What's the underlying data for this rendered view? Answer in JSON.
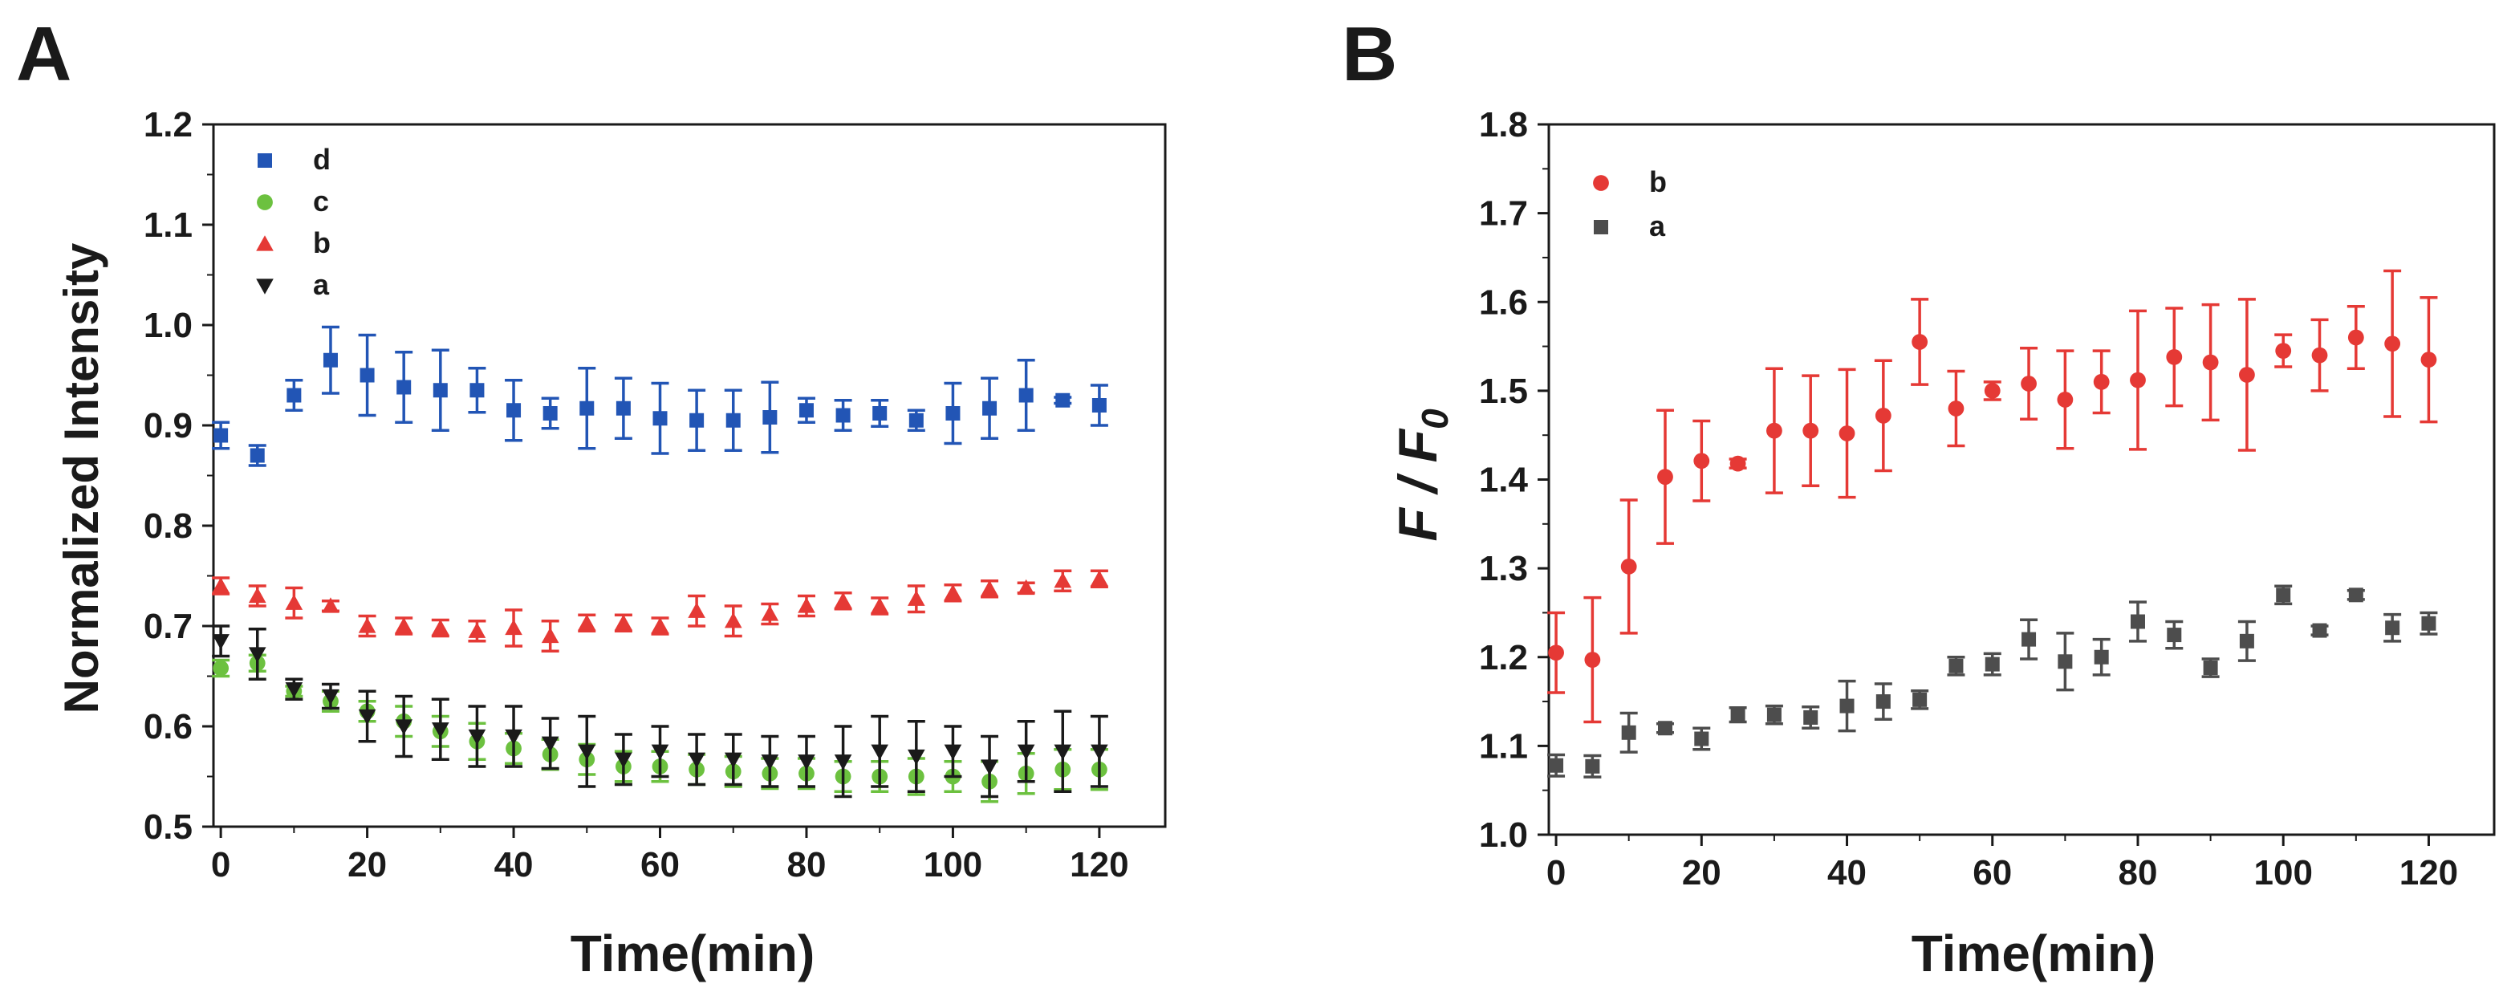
{
  "colors": {
    "d": "#2255B5",
    "c": "#6CC13F",
    "b": "#E53935",
    "a": "#1A1A1A",
    "a_b": "#4D4D4D",
    "axis": "#1A1A1A"
  },
  "chart_data": [
    {
      "panel_label": "A",
      "type": "scatter",
      "xlabel": "Time(min)",
      "ylabel": "Normalized Intensity",
      "xlim": [
        -1,
        129
      ],
      "ylim": [
        0.5,
        1.2
      ],
      "xticks": [
        0,
        20,
        40,
        60,
        80,
        100,
        120
      ],
      "xtick_labels": [
        "0",
        "20",
        "40",
        "60",
        "80",
        "100",
        "120"
      ],
      "yticks": [
        0.5,
        0.6,
        0.7,
        0.8,
        0.9,
        1.0,
        1.1,
        1.2
      ],
      "ytick_labels": [
        "0.5",
        "0.6",
        "0.7",
        "0.8",
        "0.9",
        "1.0",
        "1.1",
        "1.2"
      ],
      "legend_position": "top-left",
      "x": [
        0,
        5,
        10,
        15,
        20,
        25,
        30,
        35,
        40,
        45,
        50,
        55,
        60,
        65,
        70,
        75,
        80,
        85,
        90,
        95,
        100,
        105,
        110,
        115,
        120
      ],
      "series": [
        {
          "name": "d",
          "marker": "square",
          "color": "#2255B5",
          "values": [
            0.89,
            0.87,
            0.93,
            0.965,
            0.95,
            0.938,
            0.935,
            0.935,
            0.915,
            0.912,
            0.917,
            0.917,
            0.907,
            0.905,
            0.905,
            0.908,
            0.915,
            0.91,
            0.912,
            0.905,
            0.912,
            0.917,
            0.93,
            0.925,
            0.92
          ],
          "errors": [
            0.013,
            0.01,
            0.015,
            0.033,
            0.04,
            0.035,
            0.04,
            0.022,
            0.03,
            0.015,
            0.04,
            0.03,
            0.035,
            0.03,
            0.03,
            0.035,
            0.012,
            0.015,
            0.013,
            0.01,
            0.03,
            0.03,
            0.035,
            0.003,
            0.02
          ]
        },
        {
          "name": "c",
          "marker": "circle",
          "color": "#6CC13F",
          "values": [
            0.658,
            0.663,
            0.635,
            0.625,
            0.615,
            0.605,
            0.595,
            0.585,
            0.578,
            0.572,
            0.567,
            0.56,
            0.56,
            0.557,
            0.555,
            0.553,
            0.553,
            0.55,
            0.55,
            0.55,
            0.55,
            0.545,
            0.553,
            0.557,
            0.557
          ],
          "errors": [
            0.008,
            0.008,
            0.005,
            0.01,
            0.01,
            0.015,
            0.015,
            0.018,
            0.015,
            0.015,
            0.015,
            0.015,
            0.015,
            0.015,
            0.015,
            0.015,
            0.015,
            0.015,
            0.015,
            0.018,
            0.015,
            0.02,
            0.02,
            0.02,
            0.02
          ]
        },
        {
          "name": "b",
          "marker": "triangle-up",
          "color": "#E53935",
          "values": [
            0.74,
            0.73,
            0.723,
            0.72,
            0.7,
            0.7,
            0.698,
            0.695,
            0.698,
            0.69,
            0.703,
            0.703,
            0.7,
            0.715,
            0.705,
            0.712,
            0.72,
            0.725,
            0.72,
            0.727,
            0.733,
            0.737,
            0.738,
            0.745,
            0.747
          ],
          "errors": [
            0.008,
            0.01,
            0.015,
            0.005,
            0.01,
            0.008,
            0.008,
            0.01,
            0.018,
            0.015,
            0.008,
            0.008,
            0.008,
            0.015,
            0.015,
            0.01,
            0.01,
            0.008,
            0.008,
            0.013,
            0.008,
            0.008,
            0.005,
            0.01,
            0.008
          ]
        },
        {
          "name": "a",
          "marker": "triangle-down",
          "color": "#1A1A1A",
          "values": [
            0.685,
            0.672,
            0.637,
            0.63,
            0.61,
            0.6,
            0.597,
            0.59,
            0.59,
            0.583,
            0.575,
            0.567,
            0.575,
            0.567,
            0.567,
            0.565,
            0.565,
            0.565,
            0.575,
            0.57,
            0.575,
            0.56,
            0.575,
            0.575,
            0.575
          ],
          "errors": [
            0.015,
            0.025,
            0.01,
            0.012,
            0.025,
            0.03,
            0.03,
            0.03,
            0.03,
            0.025,
            0.035,
            0.025,
            0.025,
            0.025,
            0.025,
            0.025,
            0.025,
            0.035,
            0.035,
            0.035,
            0.025,
            0.03,
            0.03,
            0.04,
            0.035
          ]
        }
      ]
    },
    {
      "panel_label": "B",
      "type": "scatter",
      "xlabel": "Time(min)",
      "ylabel_main": "F / F",
      "ylabel_sub": "0",
      "xlim": [
        -1,
        129
      ],
      "ylim": [
        1.0,
        1.8
      ],
      "xticks": [
        0,
        20,
        40,
        60,
        80,
        100,
        120
      ],
      "xtick_labels": [
        "0",
        "20",
        "40",
        "60",
        "80",
        "100",
        "120"
      ],
      "yticks": [
        1.0,
        1.1,
        1.2,
        1.3,
        1.4,
        1.5,
        1.6,
        1.7,
        1.8
      ],
      "ytick_labels": [
        "1.0",
        "1.1",
        "1.2",
        "1.3",
        "1.4",
        "1.5",
        "1.6",
        "1.7",
        "1.8"
      ],
      "legend_position": "top-left",
      "x": [
        0,
        5,
        10,
        15,
        20,
        25,
        30,
        35,
        40,
        45,
        50,
        55,
        60,
        65,
        70,
        75,
        80,
        85,
        90,
        95,
        100,
        105,
        110,
        115,
        120
      ],
      "series": [
        {
          "name": "b",
          "marker": "circle",
          "color": "#E53935",
          "values": [
            1.205,
            1.197,
            1.302,
            1.403,
            1.421,
            1.418,
            1.455,
            1.455,
            1.452,
            1.472,
            1.555,
            1.48,
            1.5,
            1.508,
            1.49,
            1.51,
            1.512,
            1.538,
            1.532,
            1.518,
            1.545,
            1.54,
            1.56,
            1.553,
            1.535
          ],
          "errors": [
            0.045,
            0.07,
            0.075,
            0.075,
            0.045,
            0.005,
            0.07,
            0.062,
            0.072,
            0.062,
            0.048,
            0.042,
            0.01,
            0.04,
            0.055,
            0.035,
            0.078,
            0.055,
            0.065,
            0.085,
            0.018,
            0.04,
            0.035,
            0.082,
            0.07
          ]
        },
        {
          "name": "a",
          "marker": "square",
          "color": "#4D4D4D",
          "values": [
            1.078,
            1.077,
            1.115,
            1.12,
            1.108,
            1.135,
            1.135,
            1.132,
            1.145,
            1.15,
            1.152,
            1.19,
            1.192,
            1.22,
            1.195,
            1.2,
            1.24,
            1.225,
            1.188,
            1.218,
            1.27,
            1.23,
            1.27,
            1.233,
            1.238
          ],
          "errors": [
            0.012,
            0.012,
            0.022,
            0.005,
            0.012,
            0.008,
            0.01,
            0.012,
            0.028,
            0.02,
            0.01,
            0.01,
            0.012,
            0.022,
            0.032,
            0.02,
            0.022,
            0.015,
            0.01,
            0.022,
            0.01,
            0.005,
            0.005,
            0.015,
            0.012
          ]
        }
      ]
    }
  ]
}
